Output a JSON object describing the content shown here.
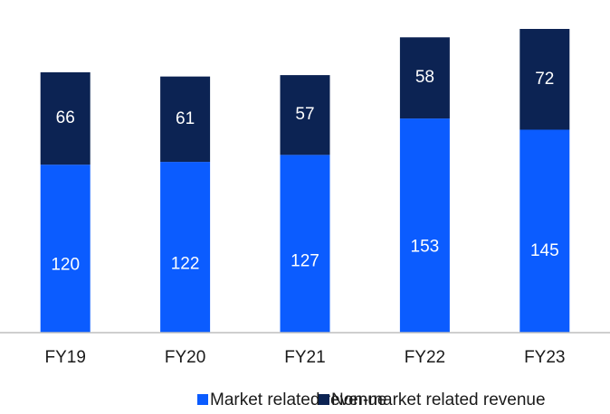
{
  "chart_data": {
    "type": "stacked_bar",
    "categories": [
      "FY19",
      "FY20",
      "FY21",
      "FY22",
      "FY23"
    ],
    "series": [
      {
        "name": "Market related revenue",
        "color": "#0b5cff",
        "values": [
          120,
          122,
          127,
          153,
          145
        ]
      },
      {
        "name": "Non-market related revenue",
        "color": "#0c2353",
        "values": [
          66,
          61,
          57,
          58,
          72
        ]
      }
    ],
    "legend": "bottom"
  }
}
